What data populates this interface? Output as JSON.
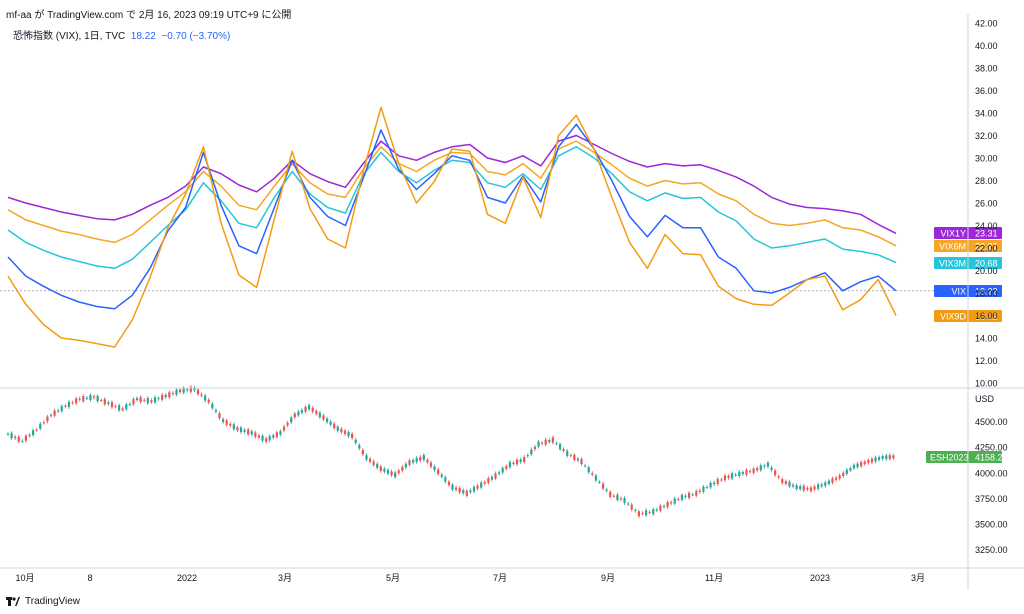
{
  "header": {
    "published_by": "mf-aa が TradingView.com で 2月 16, 2023 09:19 UTC+9 に公開",
    "symbol": "恐怖指数 (VIX), 1日, TVC",
    "last": "18.22",
    "change": "−0.70 (−3.70%)"
  },
  "footer": {
    "brand": "TradingView"
  },
  "colors": {
    "VIX1Y": "#9c27d9",
    "VIX6M": "#f5a623",
    "VIX3M": "#26c6da",
    "VIX": "#2962ff",
    "VIX9D": "#f39c12",
    "ES": "#4caf50"
  },
  "chart_data": [
    {
      "type": "line",
      "ylim": [
        10,
        42
      ],
      "y_ticks": [
        "42.00",
        "40.00",
        "38.00",
        "36.00",
        "34.00",
        "32.00",
        "30.00",
        "28.00",
        "26.00",
        "24.00",
        "22.00",
        "20.00",
        "18.00",
        "16.00",
        "14.00",
        "12.00",
        "10.00"
      ],
      "x_ticks": [
        "10月",
        "8",
        "2022",
        "3月",
        "5月",
        "7月",
        "9月",
        "11月",
        "2023",
        "3月"
      ],
      "series": [
        {
          "name": "VIX1Y",
          "last": "23.31",
          "values": [
            26.5,
            26.0,
            25.6,
            25.2,
            24.9,
            24.6,
            24.5,
            25.0,
            25.8,
            26.5,
            27.5,
            29.2,
            28.6,
            27.6,
            27.0,
            28.2,
            29.8,
            28.6,
            27.9,
            27.4,
            29.5,
            31.5,
            30.2,
            29.8,
            30.5,
            31.0,
            31.2,
            30.0,
            29.6,
            30.2,
            29.3,
            31.5,
            32.0,
            31.2,
            30.4,
            29.7,
            29.2,
            29.5,
            29.3,
            29.4,
            28.9,
            28.3,
            27.5,
            26.5,
            25.9,
            25.6,
            25.5,
            25.3,
            25.0,
            24.1,
            23.3
          ]
        },
        {
          "name": "VIX6M",
          "last": "22.21",
          "values": [
            25.4,
            24.5,
            24.0,
            23.5,
            23.2,
            22.8,
            22.5,
            23.2,
            24.5,
            25.8,
            27.0,
            28.8,
            27.5,
            25.8,
            25.4,
            27.5,
            29.5,
            27.8,
            26.8,
            26.5,
            29.0,
            31.0,
            29.5,
            28.8,
            29.8,
            30.5,
            30.4,
            28.8,
            28.5,
            29.5,
            28.2,
            30.8,
            31.5,
            30.5,
            29.4,
            28.2,
            27.5,
            28.0,
            27.7,
            27.8,
            26.8,
            26.2,
            25.0,
            24.2,
            24.0,
            24.2,
            24.5,
            23.8,
            23.6,
            23.0,
            22.2
          ]
        },
        {
          "name": "VIX3M",
          "last": "20.68",
          "values": [
            23.6,
            22.5,
            21.8,
            21.2,
            20.8,
            20.4,
            20.2,
            21.0,
            22.5,
            24.0,
            25.4,
            27.8,
            26.2,
            24.2,
            23.8,
            26.5,
            28.8,
            26.8,
            25.6,
            25.1,
            28.5,
            30.5,
            28.8,
            27.8,
            28.9,
            29.8,
            29.6,
            27.8,
            27.4,
            28.6,
            27.2,
            30.2,
            31.0,
            30.0,
            28.6,
            27.0,
            26.2,
            26.9,
            26.4,
            26.5,
            25.2,
            24.4,
            22.8,
            22.0,
            22.2,
            22.5,
            22.8,
            21.9,
            21.7,
            21.4,
            20.7
          ]
        },
        {
          "name": "VIX",
          "last": "18.22",
          "values": [
            21.2,
            19.5,
            18.6,
            17.8,
            17.2,
            16.8,
            16.6,
            17.8,
            20.2,
            23.5,
            25.6,
            30.5,
            25.8,
            22.2,
            21.5,
            25.6,
            29.8,
            26.5,
            24.8,
            24.0,
            28.2,
            32.5,
            29.0,
            27.2,
            28.6,
            30.2,
            29.8,
            26.5,
            26.0,
            28.4,
            26.1,
            31.0,
            33.0,
            30.8,
            28.0,
            24.8,
            23.0,
            24.9,
            23.8,
            23.8,
            21.2,
            20.2,
            18.2,
            18.0,
            18.5,
            19.2,
            19.8,
            18.2,
            19.0,
            19.5,
            18.2
          ]
        },
        {
          "name": "VIX9D",
          "last": "16.02",
          "values": [
            19.5,
            17.0,
            15.2,
            14.0,
            13.8,
            13.5,
            13.2,
            15.6,
            19.4,
            23.8,
            26.8,
            31.0,
            24.2,
            19.6,
            18.5,
            24.6,
            30.6,
            25.5,
            22.8,
            22.0,
            28.8,
            34.5,
            29.5,
            26.0,
            27.9,
            30.8,
            30.6,
            25.0,
            24.2,
            28.3,
            24.7,
            32.0,
            33.8,
            30.8,
            26.5,
            22.5,
            20.2,
            23.2,
            21.5,
            21.4,
            18.6,
            17.5,
            17.0,
            16.9,
            18.0,
            19.2,
            19.5,
            16.5,
            17.4,
            19.2,
            16.0
          ]
        }
      ]
    },
    {
      "type": "line",
      "ylim": [
        3100,
        4750
      ],
      "y_ticks": [
        "USD",
        "4500.00",
        "4250.00",
        "4000.00",
        "3750.00",
        "3500.00",
        "3250.00"
      ],
      "series": [
        {
          "name": "ESH2023",
          "last": "4158.25",
          "values": [
            4380,
            4310,
            4420,
            4560,
            4650,
            4720,
            4740,
            4680,
            4620,
            4720,
            4700,
            4750,
            4800,
            4820,
            4700,
            4510,
            4430,
            4390,
            4320,
            4390,
            4560,
            4640,
            4540,
            4430,
            4360,
            4150,
            4040,
            3980,
            4100,
            4150,
            4010,
            3860,
            3800,
            3880,
            3970,
            4080,
            4130,
            4280,
            4320,
            4190,
            4110,
            3950,
            3790,
            3730,
            3600,
            3620,
            3690,
            3760,
            3800,
            3880,
            3950,
            3990,
            4020,
            4080,
            3920,
            3860,
            3840,
            3890,
            3960,
            4060,
            4110,
            4150,
            4158
          ]
        }
      ]
    }
  ]
}
